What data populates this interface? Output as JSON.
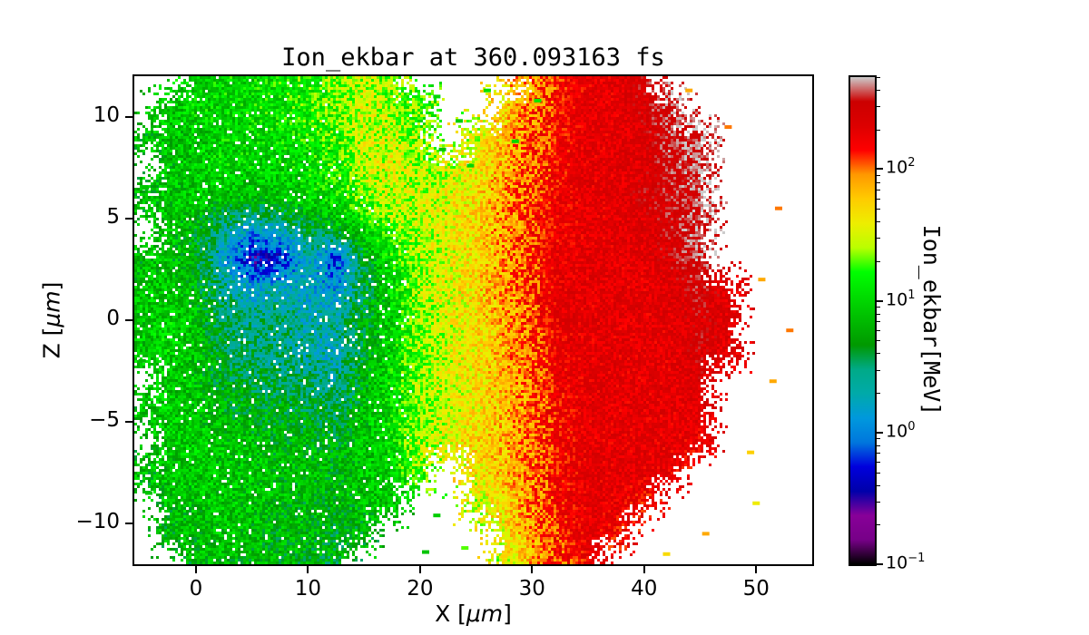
{
  "figure": {
    "title": "Ion_ekbar at 360.093163 fs",
    "xlabel": {
      "prefix": "X [",
      "unit": "μm",
      "suffix": "]"
    },
    "ylabel": {
      "prefix": "Z [",
      "unit": "μm",
      "suffix": "]"
    },
    "colorbar_label": "Ion_ekbar[MeV]"
  },
  "chart_data": {
    "type": "heatmap",
    "title": "Ion_ekbar at 360.093163 fs",
    "xlabel": "X [μm]",
    "ylabel": "Z [μm]",
    "xlim": [
      -5.5,
      55
    ],
    "ylim": [
      -12,
      12
    ],
    "x_ticks": [
      0,
      10,
      20,
      30,
      40,
      50
    ],
    "y_ticks": [
      10,
      5,
      0,
      -5,
      -10
    ],
    "grid_on": false,
    "background": "#ffffff",
    "axes_color": "#000000",
    "colorbar": {
      "label": "Ion_ekbar[MeV]",
      "scale": "log",
      "tick_exponents": [
        2,
        1,
        0,
        -1
      ],
      "vmin": 0.1,
      "vmax": 500,
      "colormap": "nipy_spectral",
      "position": "right"
    },
    "colormap_stops": [
      [
        0.0,
        "#000000"
      ],
      [
        0.05,
        "#770088"
      ],
      [
        0.1,
        "#880099"
      ],
      [
        0.15,
        "#0000AA"
      ],
      [
        0.2,
        "#0000DD"
      ],
      [
        0.25,
        "#0077DD"
      ],
      [
        0.3,
        "#0099DD"
      ],
      [
        0.35,
        "#00AAAA"
      ],
      [
        0.4,
        "#00AA88"
      ],
      [
        0.45,
        "#009900"
      ],
      [
        0.5,
        "#00BB00"
      ],
      [
        0.55,
        "#00DD00"
      ],
      [
        0.6,
        "#00FF00"
      ],
      [
        0.65,
        "#BBFF00"
      ],
      [
        0.7,
        "#EEEE00"
      ],
      [
        0.75,
        "#FFCC00"
      ],
      [
        0.8,
        "#FF9900"
      ],
      [
        0.85,
        "#FF0000"
      ],
      [
        0.9,
        "#DD0000"
      ],
      [
        0.95,
        "#CC0000"
      ],
      [
        1.0,
        "#CCCCCC"
      ]
    ],
    "grid": {
      "x_nodes": [
        -5,
        -2.5,
        0,
        2.5,
        5,
        7.5,
        10,
        12.5,
        15,
        17.5,
        20,
        22.5,
        25,
        27.5,
        30,
        32.5,
        35,
        37.5,
        40,
        42.5,
        45,
        47.5,
        50,
        52.5,
        55
      ],
      "z_nodes": [
        12,
        10.5,
        9,
        7.5,
        6,
        4.5,
        3,
        1.5,
        0,
        -1.5,
        -3,
        -4.5,
        -6,
        -7.5,
        -9,
        -10.5,
        -12
      ],
      "log10_mev_rows": [
        [
          null,
          null,
          1.0,
          1.05,
          1.0,
          1.1,
          1.2,
          1.35,
          1.45,
          1.3,
          null,
          null,
          null,
          null,
          1.9,
          2.15,
          2.25,
          2.3,
          2.45,
          null,
          null,
          null,
          null,
          null,
          null
        ],
        [
          null,
          0.9,
          1.0,
          1.0,
          1.05,
          1.1,
          1.15,
          1.3,
          1.5,
          1.4,
          1.2,
          null,
          null,
          1.7,
          2.0,
          2.2,
          2.3,
          2.3,
          2.4,
          2.6,
          null,
          null,
          null,
          null,
          null
        ],
        [
          0.8,
          0.9,
          0.95,
          1.0,
          1.0,
          1.05,
          1.1,
          1.2,
          1.5,
          1.5,
          1.3,
          null,
          1.5,
          1.8,
          2.05,
          2.2,
          2.3,
          2.3,
          2.35,
          2.55,
          2.6,
          null,
          null,
          null,
          null
        ],
        [
          null,
          0.85,
          0.95,
          1.0,
          1.0,
          1.0,
          1.05,
          1.15,
          1.45,
          1.55,
          1.4,
          1.5,
          1.6,
          1.85,
          2.05,
          2.2,
          2.3,
          2.3,
          2.35,
          2.5,
          2.6,
          null,
          null,
          null,
          null
        ],
        [
          0.8,
          0.9,
          0.95,
          0.9,
          0.85,
          0.9,
          1.0,
          1.05,
          1.3,
          1.5,
          1.45,
          1.55,
          1.7,
          1.9,
          2.1,
          2.25,
          2.3,
          2.3,
          2.4,
          2.45,
          2.55,
          null,
          null,
          null,
          null
        ],
        [
          null,
          0.9,
          0.8,
          0.4,
          0.15,
          0.3,
          0.6,
          0.8,
          1.0,
          1.3,
          1.45,
          1.55,
          1.7,
          1.9,
          2.1,
          2.25,
          2.3,
          2.3,
          2.35,
          2.45,
          2.6,
          null,
          null,
          null,
          null
        ],
        [
          0.85,
          0.9,
          0.7,
          0.2,
          -0.4,
          -0.3,
          0.3,
          -0.2,
          0.7,
          1.1,
          1.4,
          1.55,
          1.7,
          1.9,
          2.1,
          2.3,
          2.3,
          2.3,
          2.3,
          2.4,
          2.55,
          null,
          null,
          null,
          null
        ],
        [
          0.9,
          0.95,
          0.8,
          0.4,
          0.2,
          0.3,
          0.2,
          0.1,
          0.6,
          1.0,
          1.4,
          1.55,
          1.7,
          1.9,
          2.1,
          2.3,
          2.3,
          2.3,
          2.3,
          2.35,
          2.45,
          2.3,
          null,
          null,
          null
        ],
        [
          0.9,
          1.0,
          0.9,
          0.5,
          0.4,
          0.5,
          0.3,
          0.4,
          0.7,
          1.0,
          1.35,
          1.5,
          1.65,
          1.85,
          2.05,
          2.3,
          2.3,
          2.3,
          2.3,
          2.3,
          2.4,
          2.35,
          null,
          null,
          null
        ],
        [
          0.9,
          1.0,
          0.9,
          0.6,
          0.5,
          0.45,
          0.35,
          0.25,
          0.7,
          1.0,
          1.35,
          1.5,
          1.65,
          1.85,
          2.05,
          2.25,
          2.3,
          2.3,
          2.3,
          2.3,
          2.4,
          2.3,
          null,
          null,
          null
        ],
        [
          null,
          0.95,
          0.9,
          0.7,
          0.6,
          0.55,
          0.5,
          0.4,
          0.8,
          1.05,
          1.35,
          1.5,
          1.65,
          1.8,
          2.0,
          2.25,
          2.3,
          2.3,
          2.3,
          2.3,
          2.35,
          null,
          null,
          null,
          null
        ],
        [
          0.85,
          0.95,
          0.9,
          0.8,
          0.75,
          0.7,
          0.65,
          0.6,
          0.85,
          1.05,
          1.35,
          1.5,
          1.6,
          1.8,
          2.0,
          2.2,
          2.3,
          2.3,
          2.3,
          2.3,
          2.3,
          null,
          null,
          null,
          null
        ],
        [
          null,
          0.9,
          0.95,
          0.9,
          0.85,
          0.8,
          0.8,
          0.75,
          0.9,
          1.05,
          1.4,
          1.55,
          1.7,
          1.8,
          2.0,
          2.2,
          2.3,
          2.3,
          2.3,
          2.3,
          2.25,
          null,
          null,
          null,
          null
        ],
        [
          0.8,
          0.9,
          0.95,
          0.9,
          0.9,
          0.85,
          0.85,
          0.8,
          0.9,
          1.0,
          1.3,
          null,
          1.6,
          1.8,
          2.0,
          2.2,
          2.3,
          2.3,
          2.3,
          2.25,
          null,
          null,
          null,
          null,
          null
        ],
        [
          null,
          0.85,
          0.9,
          0.9,
          0.9,
          0.85,
          0.8,
          0.8,
          0.85,
          0.95,
          null,
          null,
          1.5,
          1.7,
          1.95,
          2.2,
          2.3,
          2.3,
          2.2,
          null,
          null,
          null,
          null,
          null,
          null
        ],
        [
          null,
          0.8,
          0.85,
          0.9,
          0.85,
          0.8,
          0.8,
          0.75,
          0.8,
          null,
          null,
          null,
          null,
          1.6,
          1.9,
          2.15,
          2.3,
          2.2,
          null,
          null,
          null,
          null,
          null,
          null,
          null
        ],
        [
          null,
          null,
          0.8,
          0.85,
          0.8,
          0.8,
          0.75,
          0.7,
          null,
          null,
          null,
          null,
          null,
          1.5,
          1.85,
          2.1,
          2.2,
          null,
          null,
          null,
          null,
          null,
          null,
          null,
          null
        ]
      ]
    },
    "specks": [
      [
        21.5,
        11.0,
        1.0
      ],
      [
        23.5,
        9.8,
        0.95
      ],
      [
        26.0,
        11.3,
        1.05
      ],
      [
        28.5,
        8.8,
        1.0
      ],
      [
        24.5,
        7.6,
        1.0
      ],
      [
        30.5,
        10.8,
        1.1
      ],
      [
        22.0,
        8.4,
        0.9
      ],
      [
        19.5,
        -8.2,
        1.0
      ],
      [
        21.5,
        -9.6,
        0.95
      ],
      [
        24.0,
        -11.2,
        1.3
      ],
      [
        26.5,
        -8.6,
        1.6
      ],
      [
        23.0,
        -6.8,
        1.55
      ],
      [
        29.0,
        -10.2,
        1.8
      ],
      [
        25.5,
        -9.8,
        1.7
      ],
      [
        20.5,
        -11.4,
        0.9
      ],
      [
        27.5,
        -11.6,
        1.75
      ],
      [
        31.0,
        -11.8,
        2.0
      ],
      [
        50.5,
        2.0,
        1.9
      ],
      [
        51.5,
        -3.0,
        1.9
      ],
      [
        49.5,
        -6.5,
        1.75
      ],
      [
        52.0,
        5.5,
        2.0
      ],
      [
        47.5,
        9.5,
        2.0
      ],
      [
        44.0,
        11.3,
        1.9
      ],
      [
        50.0,
        -9.0,
        1.6
      ],
      [
        45.5,
        -10.5,
        1.9
      ],
      [
        42.0,
        -11.5,
        1.7
      ],
      [
        53.0,
        -0.5,
        2.0
      ],
      [
        -4.5,
        6.5,
        0.9
      ],
      [
        -4.8,
        -2.0,
        0.85
      ],
      [
        -4.2,
        -8.5,
        0.9
      ]
    ],
    "noise_log10": 0.28
  }
}
